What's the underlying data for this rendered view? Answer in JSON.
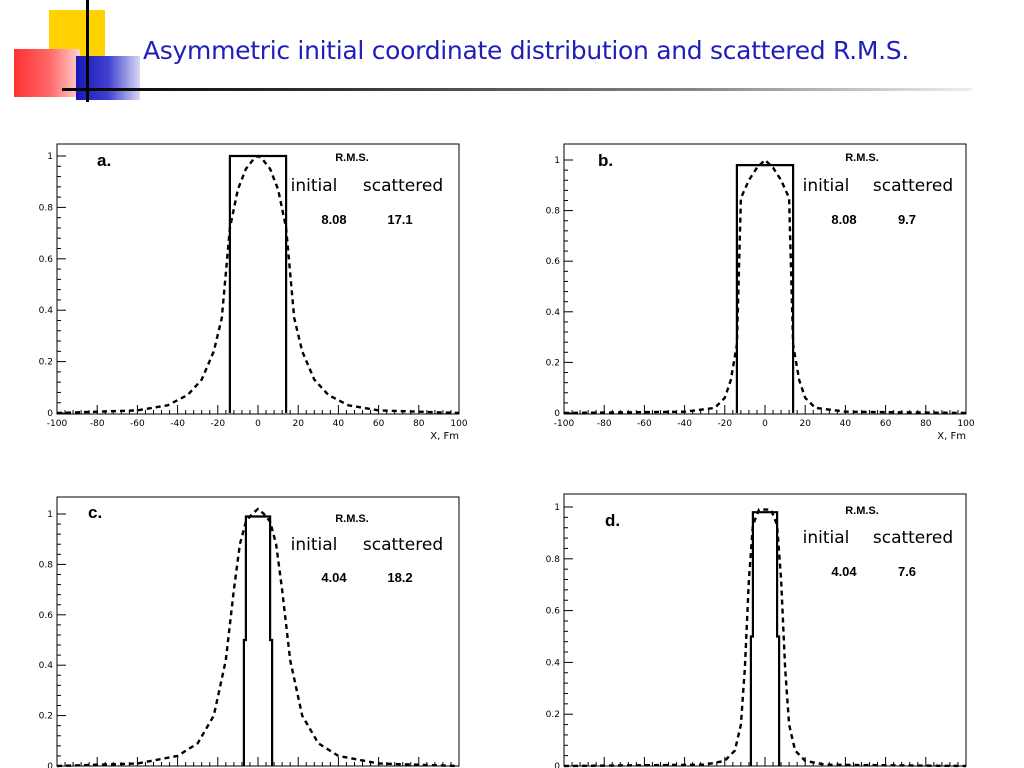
{
  "slide": {
    "title": "Asymmetric initial coordinate distribution and scattered R.M.S."
  },
  "colors": {
    "title": "#1f1fb8",
    "deco_yellow": "#ffd200",
    "deco_red": "#ff4040",
    "deco_blue": "#2020c0",
    "line": "#000000"
  },
  "chart_data": [
    {
      "panel": "a.",
      "type": "line",
      "xlim": [
        -100,
        100
      ],
      "ylim": [
        0,
        1
      ],
      "xticks": [
        -100,
        -80,
        -60,
        -40,
        -20,
        0,
        20,
        40,
        60,
        80,
        100
      ],
      "yticks": [
        0,
        0.2,
        0.4,
        0.6,
        0.8,
        1
      ],
      "xlabel": "X, Fm",
      "rms_header": "R.M.S.",
      "col_initial": "initial",
      "col_scattered": "scattered",
      "rms_initial": "8.08",
      "rms_scattered": "17.1",
      "series": [
        {
          "style": "solid",
          "x": [
            -14,
            -14,
            14,
            14
          ],
          "y": [
            0,
            1,
            1,
            0
          ]
        },
        {
          "style": "dashed",
          "x": [
            -100,
            -60,
            -45,
            -35,
            -28,
            -22,
            -18,
            -14,
            -10,
            -6,
            -2,
            0,
            2,
            6,
            10,
            14,
            18,
            22,
            28,
            35,
            45,
            60,
            100
          ],
          "y": [
            0,
            0.01,
            0.03,
            0.07,
            0.13,
            0.24,
            0.37,
            0.72,
            0.87,
            0.95,
            0.99,
            1.0,
            0.99,
            0.95,
            0.87,
            0.72,
            0.37,
            0.24,
            0.13,
            0.07,
            0.03,
            0.01,
            0
          ]
        }
      ]
    },
    {
      "panel": "b.",
      "type": "line",
      "xlim": [
        -100,
        100
      ],
      "ylim": [
        0,
        1
      ],
      "xticks": [
        -100,
        -80,
        -60,
        -40,
        -20,
        0,
        20,
        40,
        60,
        80,
        100
      ],
      "yticks": [
        0,
        0.2,
        0.4,
        0.6,
        0.8,
        1
      ],
      "xlabel": "X, Fm",
      "rms_header": "R.M.S.",
      "col_initial": "initial",
      "col_scattered": "scattered",
      "rms_initial": "8.08",
      "rms_scattered": "9.7",
      "series": [
        {
          "style": "solid",
          "x": [
            -14,
            -14,
            14,
            14
          ],
          "y": [
            0,
            0.98,
            0.98,
            0
          ]
        },
        {
          "style": "dashed",
          "x": [
            -100,
            -40,
            -25,
            -20,
            -17,
            -14,
            -12,
            -8,
            -4,
            0,
            4,
            8,
            12,
            14,
            17,
            20,
            25,
            40,
            100
          ],
          "y": [
            0,
            0.005,
            0.02,
            0.06,
            0.13,
            0.27,
            0.85,
            0.92,
            0.97,
            1.0,
            0.97,
            0.92,
            0.85,
            0.27,
            0.13,
            0.06,
            0.02,
            0.005,
            0
          ]
        }
      ]
    },
    {
      "panel": "c.",
      "type": "line",
      "xlim": [
        -100,
        100
      ],
      "ylim": [
        0,
        1
      ],
      "yticks": [
        0,
        0.2,
        0.4,
        0.6,
        0.8,
        1
      ],
      "rms_header": "R.M.S.",
      "col_initial": "initial",
      "col_scattered": "scattered",
      "rms_initial": "4.04",
      "rms_scattered": "18.2",
      "series": [
        {
          "style": "solid",
          "x": [
            -7,
            -7,
            -6,
            -6,
            6,
            6,
            7,
            7
          ],
          "y": [
            0,
            0.5,
            0.5,
            0.99,
            0.99,
            0.5,
            0.5,
            0
          ]
        },
        {
          "style": "dashed",
          "x": [
            -100,
            -60,
            -40,
            -30,
            -22,
            -16,
            -12,
            -9,
            -6,
            -3,
            0,
            3,
            6,
            9,
            12,
            16,
            22,
            30,
            40,
            60,
            100
          ],
          "y": [
            0,
            0.01,
            0.04,
            0.09,
            0.2,
            0.42,
            0.7,
            0.88,
            0.97,
            1.0,
            1.02,
            1.0,
            0.97,
            0.88,
            0.7,
            0.42,
            0.2,
            0.09,
            0.04,
            0.01,
            0
          ]
        }
      ]
    },
    {
      "panel": "d.",
      "type": "line",
      "xlim": [
        -100,
        100
      ],
      "ylim": [
        0,
        1
      ],
      "yticks": [
        0,
        0.2,
        0.4,
        0.6,
        0.8,
        1
      ],
      "rms_header": "R.M.S.",
      "col_initial": "initial",
      "col_scattered": "scattered",
      "rms_initial": "4.04",
      "rms_scattered": "7.6",
      "series": [
        {
          "style": "solid",
          "x": [
            -7,
            -7,
            -6,
            -6,
            6,
            6,
            7,
            7
          ],
          "y": [
            0,
            0.5,
            0.5,
            0.98,
            0.98,
            0.5,
            0.5,
            0
          ]
        },
        {
          "style": "dashed",
          "x": [
            -100,
            -30,
            -20,
            -15,
            -12,
            -10,
            -8,
            -6,
            -3,
            0,
            3,
            6,
            8,
            10,
            12,
            15,
            20,
            30,
            100
          ],
          "y": [
            0,
            0.005,
            0.02,
            0.06,
            0.16,
            0.38,
            0.72,
            0.93,
            0.99,
            0.99,
            0.99,
            0.93,
            0.72,
            0.38,
            0.16,
            0.06,
            0.02,
            0.005,
            0
          ]
        }
      ]
    }
  ]
}
